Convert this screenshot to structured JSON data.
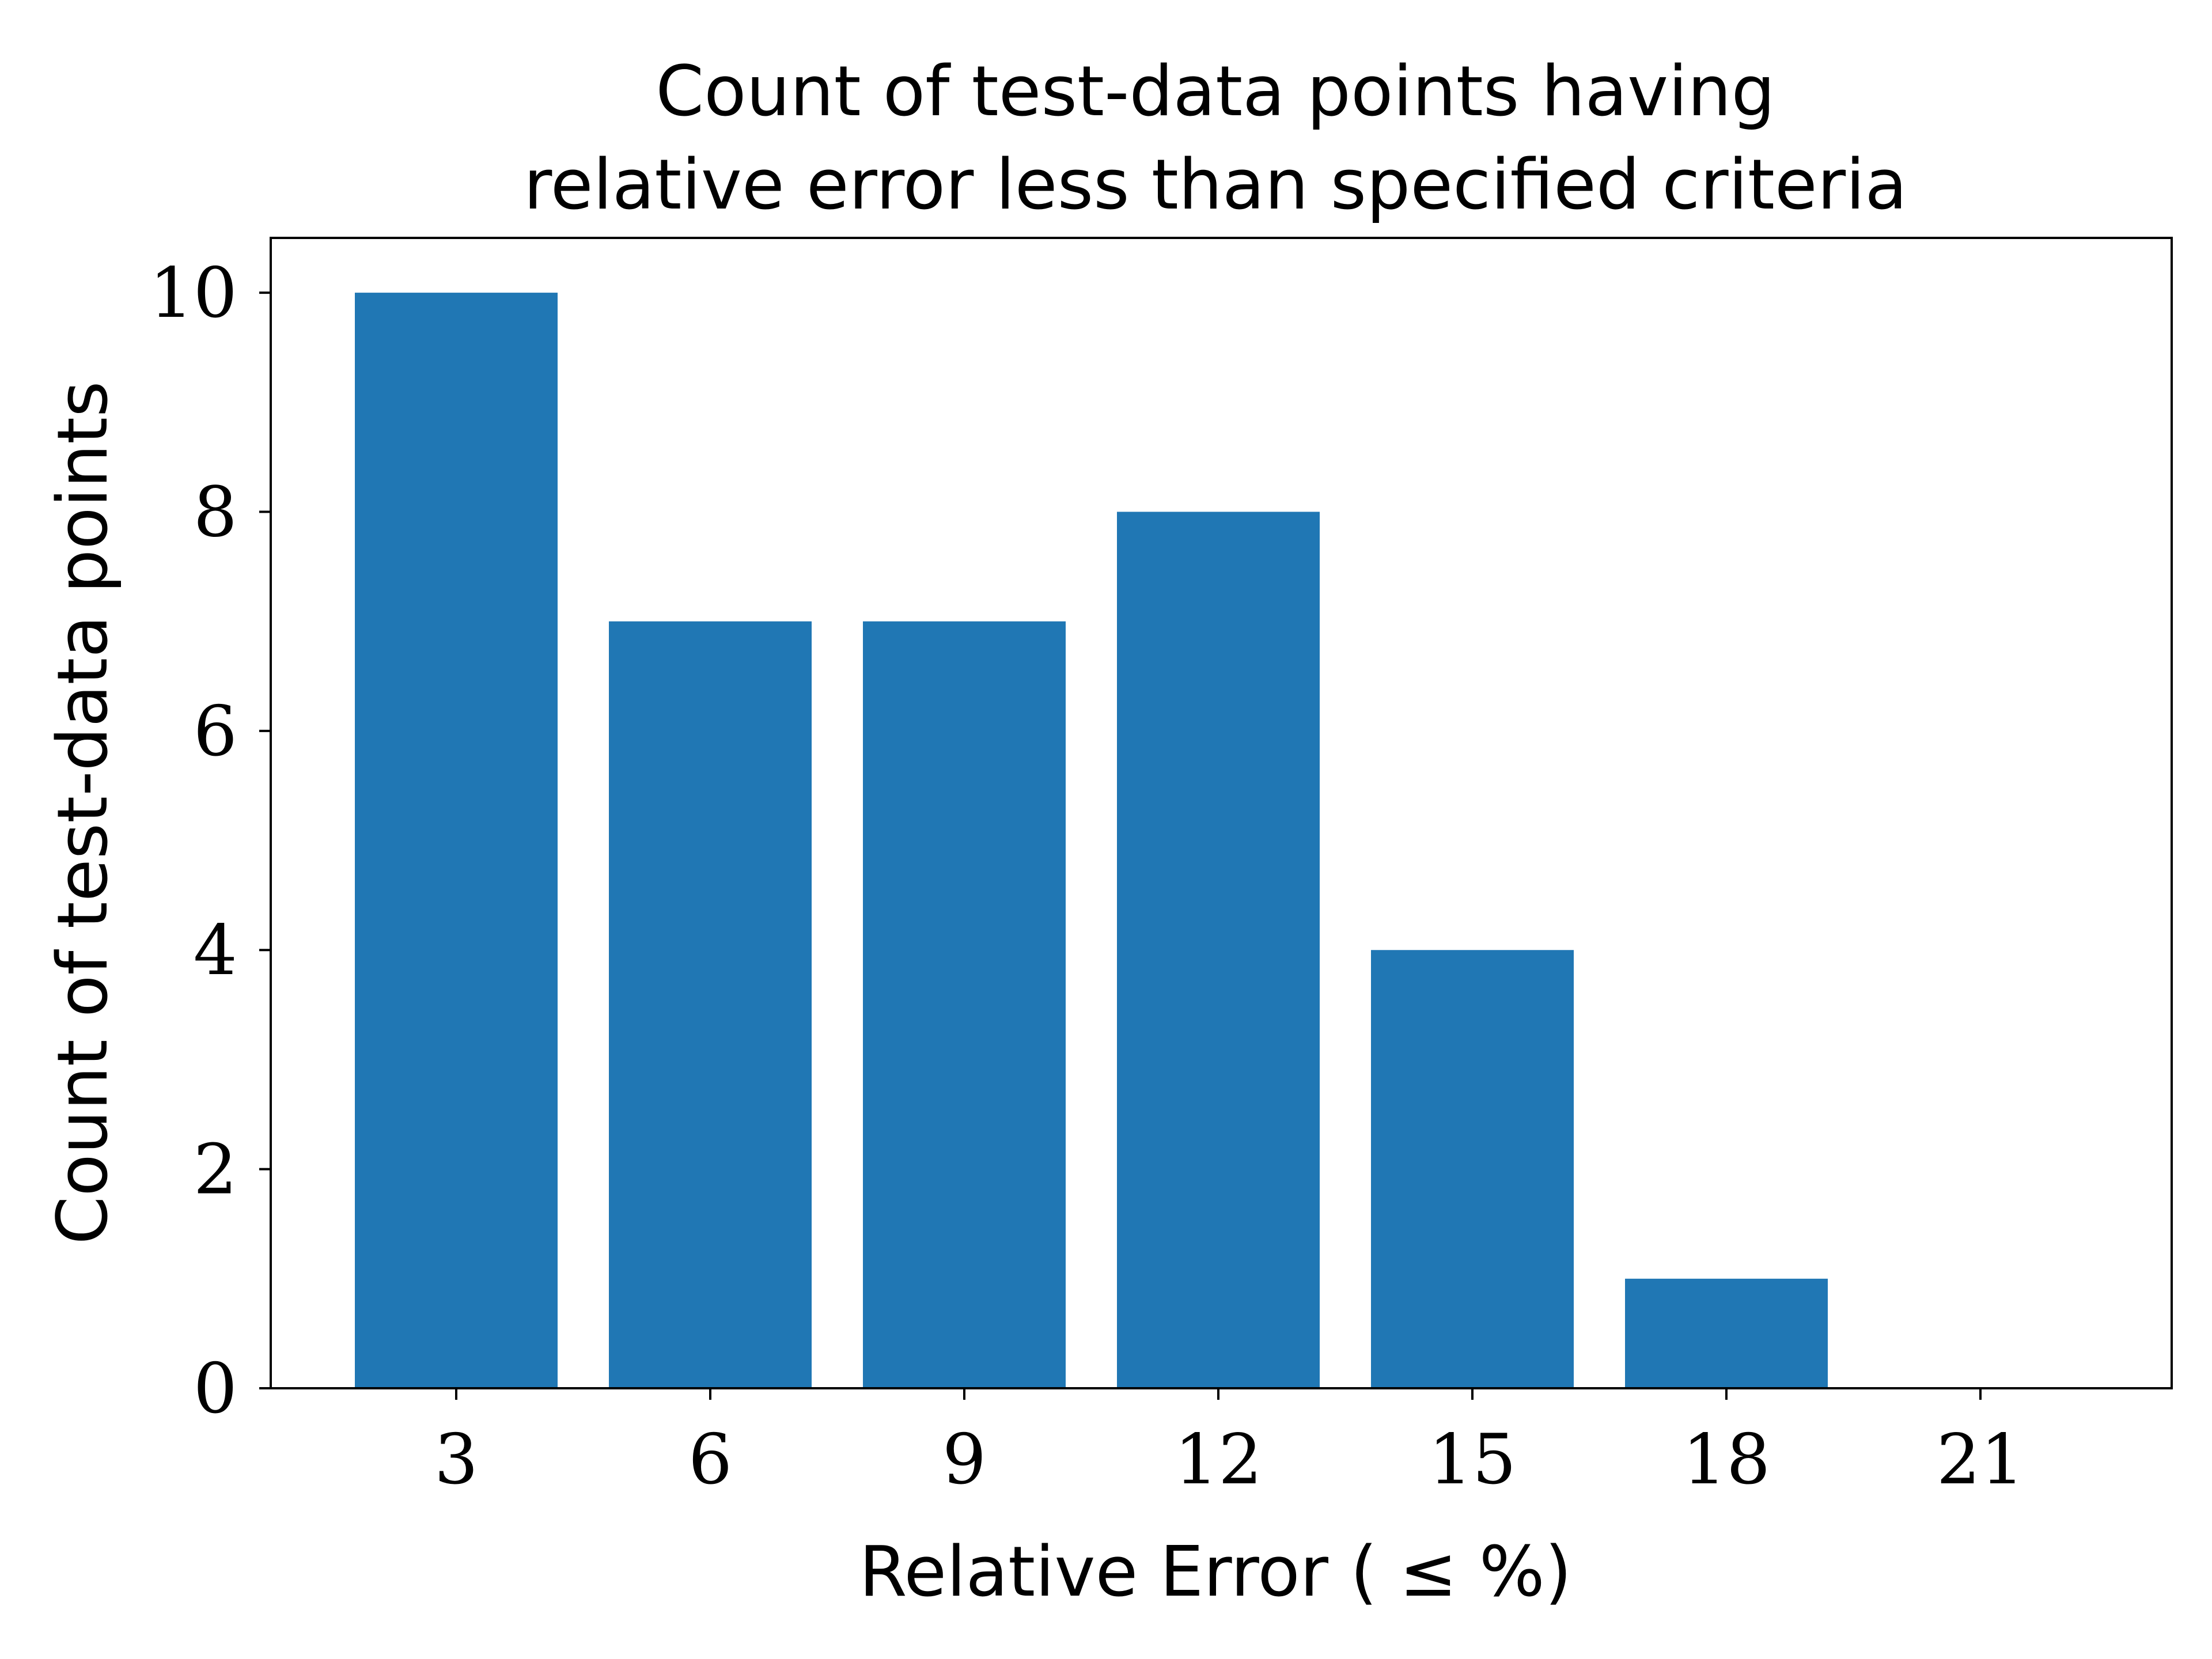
{
  "chart_data": {
    "type": "bar",
    "title_lines": [
      "Count of test-data points having",
      "relative error less than specified criteria"
    ],
    "xlabel": "Relative Error ( ≤ %)",
    "ylabel": "Count of test-data points",
    "categories": [
      "3",
      "6",
      "9",
      "12",
      "15",
      "18",
      "21"
    ],
    "values": [
      10,
      7,
      7,
      8,
      4,
      1,
      0
    ],
    "yticks": [
      "0",
      "2",
      "4",
      "6",
      "8",
      "10"
    ],
    "ylim": [
      0,
      10.5
    ],
    "bar_color": "#2077b4",
    "grid": false,
    "legend": "none"
  }
}
